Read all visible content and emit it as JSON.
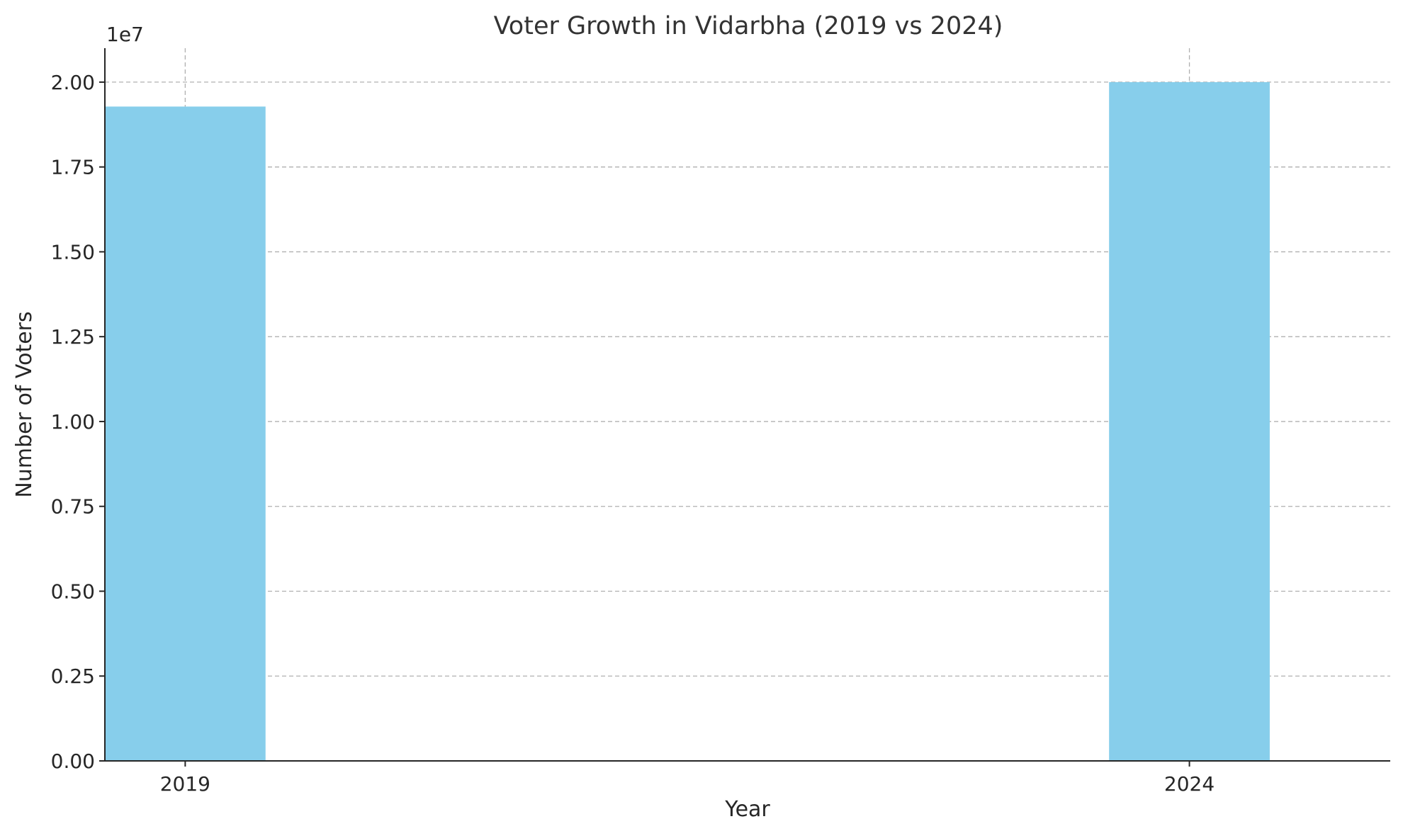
{
  "chart_data": {
    "type": "bar",
    "title": "Voter Growth in Vidarbha (2019 vs 2024)",
    "xlabel": "Year",
    "ylabel": "Number of Voters",
    "y_offset_label": "1e7",
    "y_scale_factor": 10000000,
    "x": [
      2019,
      2024
    ],
    "categories": [
      "2019",
      "2024"
    ],
    "values": [
      19280000,
      20000000
    ],
    "bar_width_years": 0.8,
    "xlim": [
      2018.6,
      2025.0
    ],
    "ylim": [
      0,
      21000000
    ],
    "yticks": [
      0,
      2500000,
      5000000,
      7500000,
      10000000,
      12500000,
      15000000,
      17500000,
      20000000
    ],
    "ytick_labels": [
      "0.00",
      "0.25",
      "0.50",
      "0.75",
      "1.00",
      "1.25",
      "1.50",
      "1.75",
      "2.00"
    ],
    "grid": true,
    "bar_color": "#87ceeb"
  }
}
